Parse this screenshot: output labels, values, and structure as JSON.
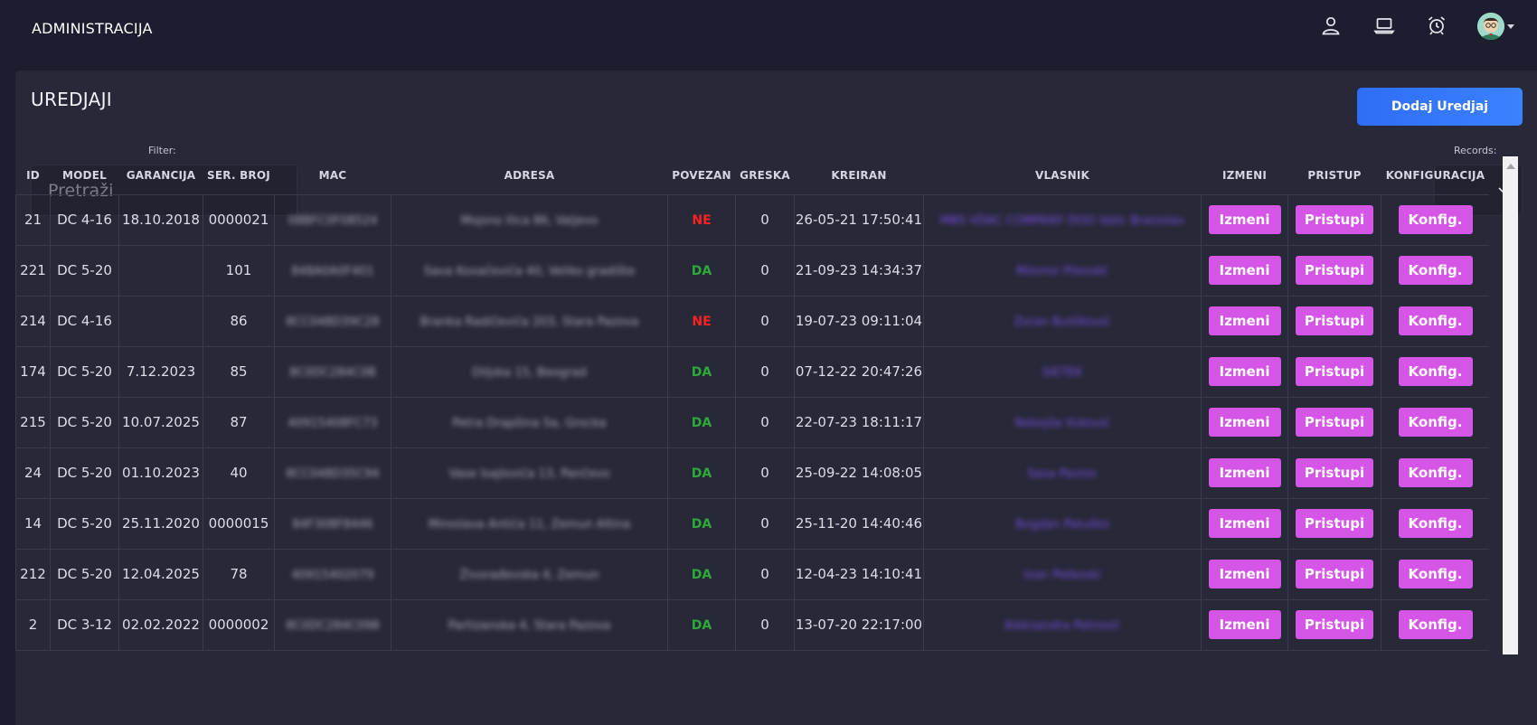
{
  "app": {
    "title": "ADMINISTRACIJA"
  },
  "header": {
    "icons": [
      "user-icon",
      "laptop-icon",
      "alarm-clock-icon"
    ],
    "avatar": "avatar"
  },
  "page": {
    "title": "UREDJAJI",
    "add_button": "Dodaj Uredjaj",
    "filter_label": "Filter:",
    "search_placeholder": "Pretraži",
    "records_label": "Records:",
    "records_value": ""
  },
  "table": {
    "columns": [
      "ID",
      "MODEL",
      "GARANCIJA",
      "SER. BROJ",
      "MAC",
      "ADRESA",
      "POVEZAN",
      "GRESKA",
      "KREIRAN",
      "VLASNIK",
      "IZMENI",
      "PRISTUP",
      "KONFIGURACIJA"
    ],
    "action_labels": {
      "edit": "Izmeni",
      "access": "Pristupi",
      "config": "Konfig."
    },
    "rows": [
      {
        "id": "21",
        "model": "DC 4-16",
        "garancija": "18.10.2018",
        "ser": "0000021",
        "mac": "08BFC0F08524",
        "adresa": "Mojsno Ilica 86, Valjevo",
        "povezan": "NE",
        "greska": "0",
        "kreiran": "26-05-21 17:50:41",
        "vlasnik": "MBS VDAC COMPANY DOO Valic Branislav"
      },
      {
        "id": "221",
        "model": "DC 5-20",
        "garancija": "",
        "ser": "101",
        "mac": "848A0A0F401",
        "adresa": "Sava Kovačevića 40, Veliko gradište",
        "povezan": "DA",
        "greska": "0",
        "kreiran": "21-09-23 14:34:37",
        "vlasnik": "Milomir Pilendić"
      },
      {
        "id": "214",
        "model": "DC 4-16",
        "garancija": "",
        "ser": "86",
        "mac": "8CC048D39C28",
        "adresa": "Branka Radičevića 203, Stara Pazova",
        "povezan": "NE",
        "greska": "0",
        "kreiran": "19-07-23 09:11:04",
        "vlasnik": "Zoran Bulišković"
      },
      {
        "id": "174",
        "model": "DC 5-20",
        "garancija": "7.12.2023",
        "ser": "85",
        "mac": "8C0DC284C0B",
        "adresa": "Diljska 15, Beograd",
        "povezan": "DA",
        "greska": "0",
        "kreiran": "07-12-22 20:47:26",
        "vlasnik": "SIETEK"
      },
      {
        "id": "215",
        "model": "DC 5-20",
        "garancija": "10.07.2025",
        "ser": "87",
        "mac": "40915408FC73",
        "adresa": "Petra Drapšina 5a, Grocka",
        "povezan": "DA",
        "greska": "0",
        "kreiran": "22-07-23 18:11:17",
        "vlasnik": "Nebojša Vuković"
      },
      {
        "id": "24",
        "model": "DC 5-20",
        "garancija": "01.10.2023",
        "ser": "40",
        "mac": "8CC048D35C94",
        "adresa": "Vase Isajlovića 13, Pančevo",
        "povezan": "DA",
        "greska": "0",
        "kreiran": "25-09-22 14:08:05",
        "vlasnik": "Sasa Pavlov"
      },
      {
        "id": "14",
        "model": "DC 5-20",
        "garancija": "25.11.2020",
        "ser": "0000015",
        "mac": "84F308F8446",
        "adresa": "Miroslava Antića 11, Zemun Altina",
        "povezan": "DA",
        "greska": "0",
        "kreiran": "25-11-20 14:40:46",
        "vlasnik": "Bogdan Patuško"
      },
      {
        "id": "212",
        "model": "DC 5-20",
        "garancija": "12.04.2025",
        "ser": "78",
        "mac": "40915402079",
        "adresa": "Živorađevska 4, Zemun",
        "povezan": "DA",
        "greska": "0",
        "kreiran": "12-04-23 14:10:41",
        "vlasnik": "Ivan Petkoski"
      },
      {
        "id": "2",
        "model": "DC 3-12",
        "garancija": "02.02.2022",
        "ser": "0000002",
        "mac": "8C0DC284C098",
        "adresa": "Partizanska 4, Stara Pazova",
        "povezan": "DA",
        "greska": "0",
        "kreiran": "13-07-20 22:17:00",
        "vlasnik": "Aleksandra Petrović"
      }
    ]
  },
  "colors": {
    "page_bg": "#1b1c2d",
    "panel_bg": "#272838",
    "primary": "#3b82ff",
    "action": "#d455e6",
    "status_no": "#ff2020",
    "status_yes": "#2ea83a"
  }
}
